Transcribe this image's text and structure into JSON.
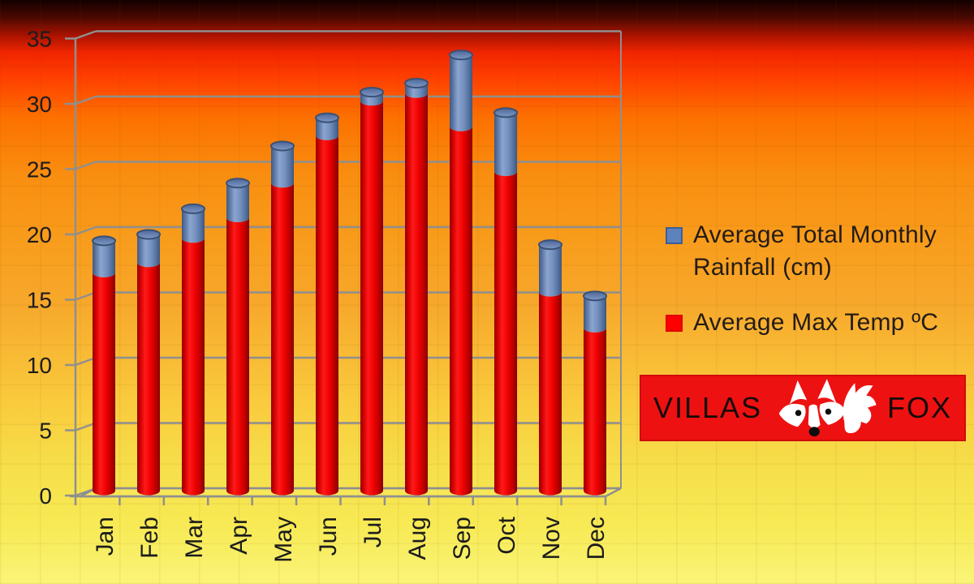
{
  "slide": {
    "kind": "presentation-chart-slide"
  },
  "chart_data": {
    "type": "bar",
    "subtype": "3d-cylinder-stacked",
    "title": "",
    "xlabel": "",
    "ylabel": "",
    "categories": [
      "Jan",
      "Feb",
      "Mar",
      "Apr",
      "May",
      "Jun",
      "Jul",
      "Aug",
      "Sep",
      "Oct",
      "Nov",
      "Dec"
    ],
    "series": [
      {
        "name": "Average Max Temp ºC",
        "color": "#ee0000",
        "values": [
          17.0,
          17.8,
          19.7,
          21.3,
          24.0,
          27.7,
          30.4,
          31.0,
          28.4,
          24.9,
          15.5,
          12.7
        ]
      },
      {
        "name": "Average Total Monthly Rainfall (cm)",
        "color": "#6c8ec0",
        "values": [
          2.5,
          2.2,
          2.3,
          2.7,
          2.9,
          1.4,
          0.7,
          0.8,
          5.6,
          4.6,
          3.7,
          2.5
        ]
      }
    ],
    "stacked": true,
    "ylim": [
      0,
      35
    ],
    "y_ticks": [
      0,
      5,
      10,
      15,
      20,
      25,
      30,
      35
    ],
    "grid": true,
    "legend_position": "right"
  },
  "legend": {
    "items": [
      {
        "label": "Average Total Monthly Rainfall (cm)",
        "swatch_fill": "#5e82bc",
        "swatch_border": "#3d5e96"
      },
      {
        "label": "Average Max Temp ºC",
        "swatch_fill": "#ff0000",
        "swatch_border": "#e00000"
      }
    ]
  },
  "logo": {
    "text_left": "VILLAS",
    "text_right": "FOX",
    "background": "#ee1111",
    "fox_color": "#ffffff"
  },
  "colors": {
    "grid_line": "#8f8f8f",
    "axis_text": "#1c1c1c",
    "temp_bar": "#ee0000",
    "rain_bar": "#6c8ec0"
  }
}
